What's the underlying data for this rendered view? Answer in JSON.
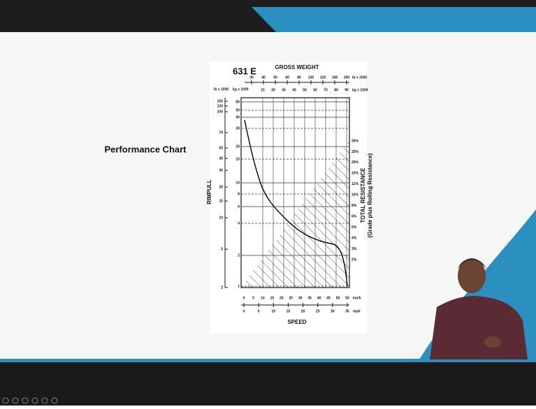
{
  "slide": {
    "title": "Performance Chart",
    "chart": {
      "model": "631 E",
      "top_title": "GROSS WEIGHT",
      "top_unit_lb": "lb x 1000",
      "top_unit_kg": "kg x 1000",
      "top_ticks_lb": [
        "30",
        "40",
        "50",
        "60",
        "80",
        "100",
        "120",
        "160",
        "200"
      ],
      "top_ticks_kg": [
        "15",
        "20",
        "30",
        "40",
        "50",
        "60",
        "70",
        "80",
        "90"
      ],
      "left_title": "RIMPULL",
      "left_unit_lb": "lb x 1000",
      "left_unit_kg": "kg x 1000",
      "left_ticks_lb": [
        "150",
        "120",
        "100",
        "70",
        "50",
        "40",
        "30",
        "20",
        "15",
        "10",
        "5",
        "2"
      ],
      "left_ticks_kg": [
        "65",
        "50",
        "40",
        "30",
        "20",
        "15",
        "10",
        "8",
        "6",
        "4",
        "2",
        "1"
      ],
      "right_title": "TOTAL RESISTANCE",
      "right_subtitle": "(Grade plus Rolling Resistance)",
      "right_ticks": [
        "30%",
        "25%",
        "20%",
        "15%",
        "12%",
        "10%",
        "8%",
        "6%",
        "5%",
        "4%",
        "3%",
        "2%"
      ],
      "bottom_ticks_kmh": [
        "0",
        "5",
        "10",
        "15",
        "20",
        "25",
        "30",
        "35",
        "40",
        "45",
        "50",
        "55"
      ],
      "bottom_unit_kmh": "km/h",
      "bottom_ticks_mph": [
        "0",
        "5",
        "10",
        "15",
        "20",
        "25",
        "30",
        "35"
      ],
      "bottom_unit_mph": "mph",
      "bottom_title": "SPEED"
    }
  }
}
